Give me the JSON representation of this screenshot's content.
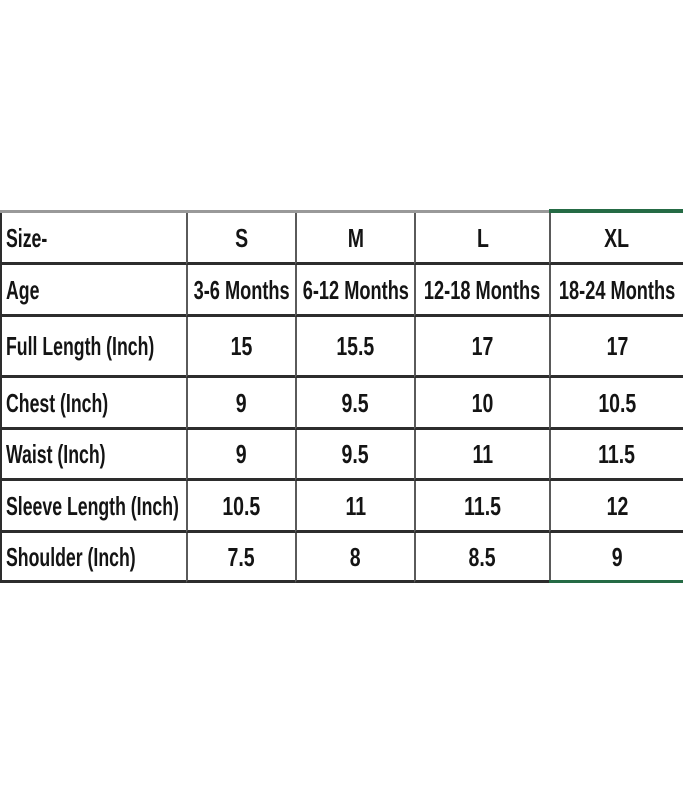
{
  "colors": {
    "text": "#141414",
    "h-line": "#2d2d2d",
    "v-line": "#5a5a5a",
    "top-line": "#999999",
    "accent-green": "#256b45",
    "background": "#ffffff"
  },
  "size_chart": {
    "corner_label": "Size-",
    "size_headers": [
      "S",
      "M",
      "L",
      "XL"
    ],
    "age_label": "Age",
    "age_values": [
      "3-6 Months",
      "6-12 Months",
      "12-18 Months",
      "18-24 Months"
    ],
    "measurement_rows": [
      {
        "label": "Full Length (Inch)",
        "values": [
          "15",
          "15.5",
          "17",
          "17"
        ]
      },
      {
        "label": "Chest (Inch)",
        "values": [
          "9",
          "9.5",
          "10",
          "10.5"
        ]
      },
      {
        "label": "Waist (Inch)",
        "values": [
          "9",
          "9.5",
          "11",
          "11.5"
        ]
      },
      {
        "label": "Sleeve Length (Inch)",
        "values": [
          "10.5",
          "11",
          "11.5",
          "12"
        ]
      },
      {
        "label": "Shoulder (Inch)",
        "values": [
          "7.5",
          "8",
          "8.5",
          "9"
        ]
      }
    ]
  }
}
